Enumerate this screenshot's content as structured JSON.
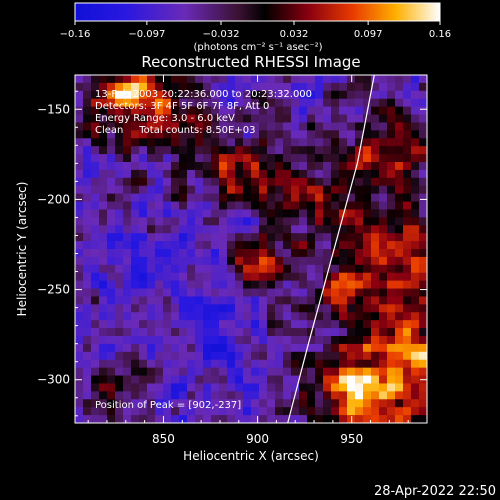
{
  "chart_data": {
    "type": "heatmap",
    "title": "Reconstructed RHESSI Image",
    "xlabel": "Heliocentric X (arcsec)",
    "ylabel": "Heliocentric Y (arcsec)",
    "xlim": [
      803,
      990
    ],
    "ylim": [
      -324,
      -131
    ],
    "x_ticks": [
      850,
      900,
      950
    ],
    "y_ticks": [
      -150,
      -200,
      -250,
      -300
    ],
    "x_tick_labels": [
      "850",
      "900",
      "950"
    ],
    "y_tick_labels": [
      "−150",
      "−200",
      "−250",
      "−300"
    ],
    "colorbar": {
      "min": -0.16,
      "max": 0.16,
      "tick_values": [
        -0.16,
        -0.097,
        -0.032,
        0.032,
        0.097,
        0.16
      ],
      "tick_labels": [
        "−0.16",
        "−0.097",
        "−0.032",
        "0.032",
        "0.097",
        "0.16"
      ],
      "unit_label": "(photons cm⁻² s⁻¹ asec⁻²)"
    },
    "annotations": [
      "13-Feb-2003 20:22:36.000 to 20:23:32.000",
      "Detectors: 3F 4F 5F 6F 7F 8F, Att 0",
      "Energy Range: 3.0 - 6.0 keV",
      "Clean     Total counts: 8.50E+03"
    ],
    "peak_label": "Position of Peak = [902,-237]",
    "peak": [
      902,
      -237
    ],
    "limb_curve": [
      [
        962,
        -131
      ],
      [
        953,
        -180
      ],
      [
        940,
        -230
      ],
      [
        927,
        -280
      ],
      [
        916,
        -324
      ]
    ],
    "sources": [
      {
        "x": 902,
        "y": -237,
        "sigma": 9,
        "amp": 0.16
      },
      {
        "x": 985,
        "y": -300,
        "sigma": 30,
        "amp": 0.15
      },
      {
        "x": 950,
        "y": -305,
        "sigma": 13,
        "amp": 0.13
      },
      {
        "x": 980,
        "y": -230,
        "sigma": 18,
        "amp": 0.12
      },
      {
        "x": 975,
        "y": -175,
        "sigma": 16,
        "amp": 0.1
      },
      {
        "x": 845,
        "y": -150,
        "sigma": 18,
        "amp": 0.11
      },
      {
        "x": 830,
        "y": -140,
        "sigma": 12,
        "amp": 0.1
      },
      {
        "x": 890,
        "y": -185,
        "sigma": 16,
        "amp": 0.09
      },
      {
        "x": 935,
        "y": -200,
        "sigma": 18,
        "amp": 0.08
      },
      {
        "x": 820,
        "y": -305,
        "sigma": 12,
        "amp": 0.08
      },
      {
        "x": 945,
        "y": -250,
        "sigma": 10,
        "amp": 0.09
      }
    ],
    "colormap": "hot-metal with negative blue-purple"
  },
  "footer": {
    "timestamp": "28-Apr-2022 22:50"
  },
  "colors": {
    "background": "#000000",
    "text": "#ffffff",
    "limb": "#ffffff"
  }
}
